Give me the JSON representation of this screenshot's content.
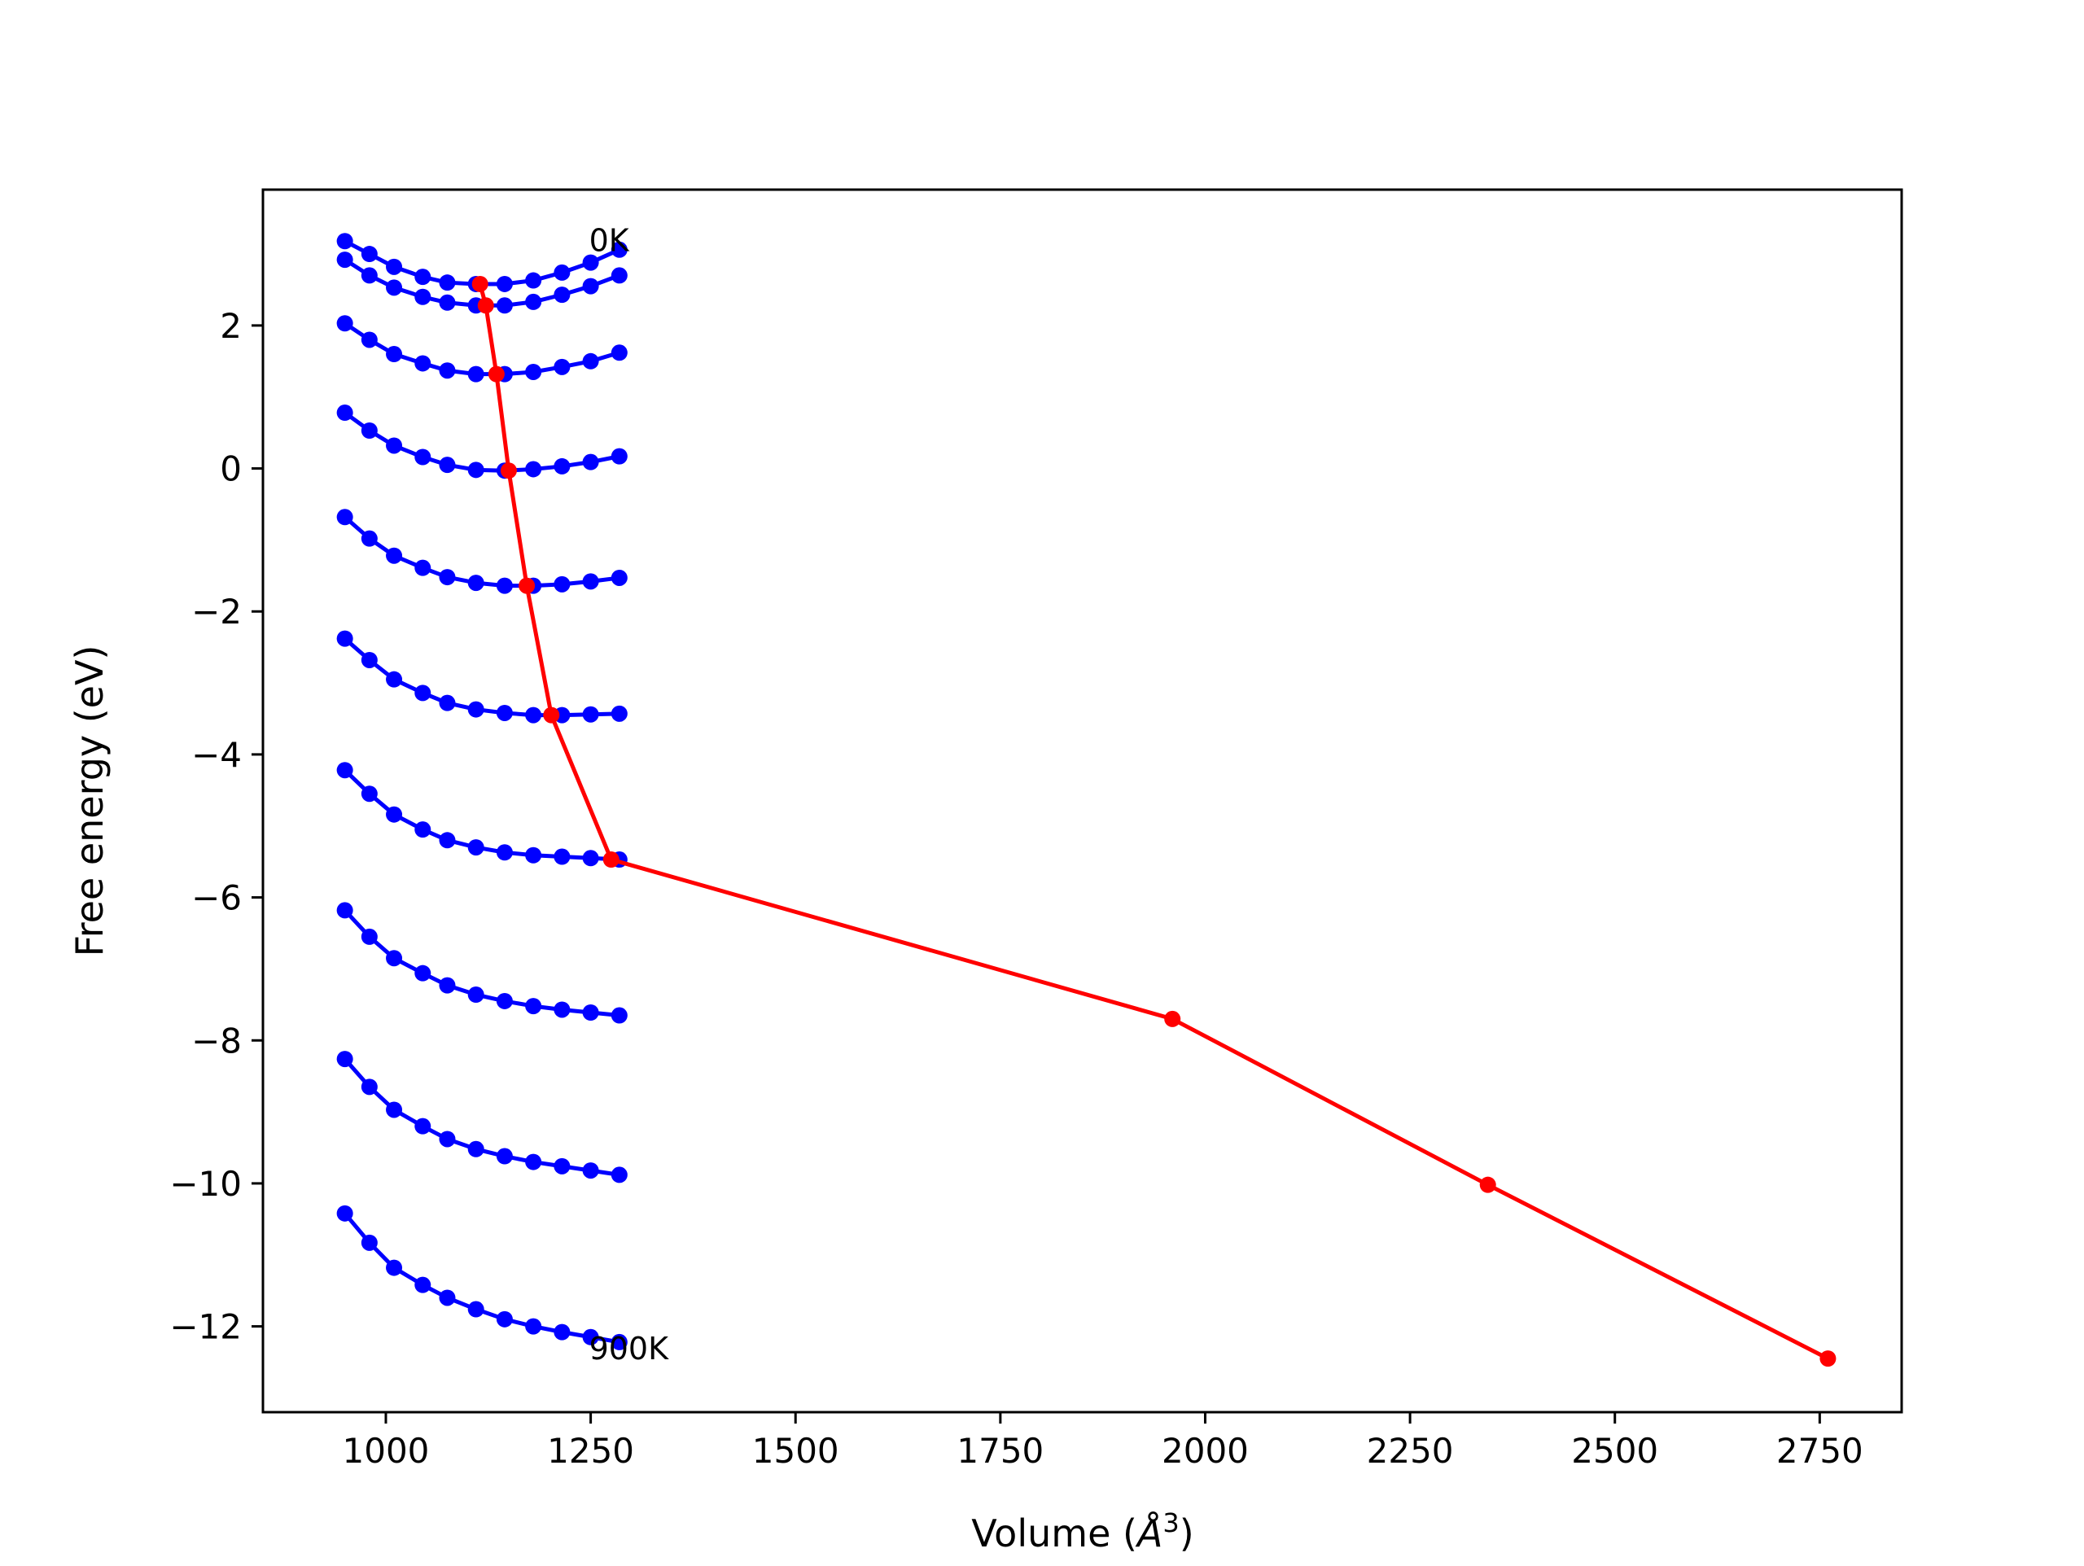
{
  "chart_data": {
    "type": "line",
    "xlabel": "Volume (",
    "xlabel_symbol": "Å",
    "xlabel_exp": "3",
    "xlabel_close": ")",
    "ylabel": "Free energy (eV)",
    "xlim": [
      850,
      2850
    ],
    "ylim": [
      -13.2,
      3.9
    ],
    "x_ticks": [
      1000,
      1250,
      1500,
      1750,
      2000,
      2250,
      2500,
      2750
    ],
    "y_ticks": [
      2,
      0,
      -2,
      -4,
      -6,
      -8,
      -10,
      -12
    ],
    "x_tick_labels": [
      "1000",
      "1250",
      "1500",
      "1750",
      "2000",
      "2250",
      "2500",
      "2750"
    ],
    "y_tick_labels": [
      "2",
      "0",
      "−2",
      "−4",
      "−6",
      "−8",
      "−10",
      "−12"
    ],
    "annotations": [
      {
        "text": "0K",
        "x": 1248,
        "y": 3.2
      },
      {
        "text": "900K",
        "x": 1248,
        "y": -12.3
      }
    ],
    "isotherm_x": [
      950,
      980,
      1010,
      1045,
      1075,
      1110,
      1145,
      1180,
      1215,
      1250,
      1285
    ],
    "isotherms": [
      {
        "color": "#0000ff",
        "values": [
          3.18,
          3.0,
          2.82,
          2.68,
          2.6,
          2.58,
          2.58,
          2.63,
          2.74,
          2.88,
          3.06
        ]
      },
      {
        "color": "#0000ff",
        "values": [
          2.92,
          2.7,
          2.53,
          2.4,
          2.32,
          2.28,
          2.28,
          2.33,
          2.43,
          2.55,
          2.7
        ]
      },
      {
        "color": "#0000ff",
        "values": [
          2.03,
          1.8,
          1.6,
          1.47,
          1.37,
          1.32,
          1.32,
          1.35,
          1.42,
          1.5,
          1.62
        ]
      },
      {
        "color": "#0000ff",
        "values": [
          0.78,
          0.53,
          0.32,
          0.16,
          0.05,
          -0.02,
          -0.03,
          -0.01,
          0.03,
          0.09,
          0.17
        ]
      },
      {
        "color": "#0000ff",
        "values": [
          -0.68,
          -0.98,
          -1.22,
          -1.39,
          -1.52,
          -1.6,
          -1.64,
          -1.64,
          -1.62,
          -1.58,
          -1.53
        ]
      },
      {
        "color": "#0000ff",
        "values": [
          -2.38,
          -2.68,
          -2.95,
          -3.14,
          -3.28,
          -3.37,
          -3.42,
          -3.45,
          -3.45,
          -3.44,
          -3.43
        ]
      },
      {
        "color": "#0000ff",
        "values": [
          -4.22,
          -4.55,
          -4.84,
          -5.05,
          -5.2,
          -5.3,
          -5.37,
          -5.41,
          -5.43,
          -5.45,
          -5.47
        ]
      },
      {
        "color": "#0000ff",
        "values": [
          -6.18,
          -6.55,
          -6.85,
          -7.06,
          -7.23,
          -7.36,
          -7.45,
          -7.52,
          -7.57,
          -7.61,
          -7.65
        ]
      },
      {
        "color": "#0000ff",
        "values": [
          -8.26,
          -8.65,
          -8.97,
          -9.2,
          -9.38,
          -9.52,
          -9.62,
          -9.7,
          -9.76,
          -9.82,
          -9.88
        ]
      },
      {
        "color": "#0000ff",
        "values": [
          -10.42,
          -10.83,
          -11.18,
          -11.42,
          -11.6,
          -11.76,
          -11.9,
          -12.0,
          -12.08,
          -12.15,
          -12.22
        ]
      }
    ],
    "minimum_curve": {
      "color": "#ff0000",
      "x": [
        1115,
        1122,
        1135,
        1150,
        1172,
        1202,
        1275,
        1960,
        2345,
        2760
      ],
      "y": [
        2.58,
        2.28,
        1.32,
        -0.03,
        -1.64,
        -3.45,
        -5.47,
        -7.7,
        -10.02,
        -12.45
      ]
    },
    "grid": false,
    "legend": "none"
  }
}
